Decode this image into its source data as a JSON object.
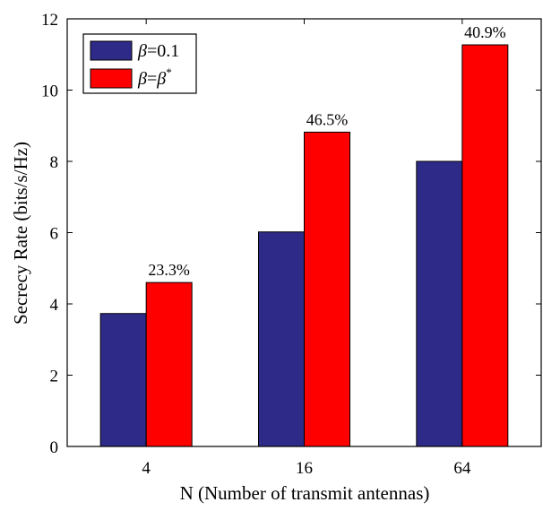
{
  "chart_data": {
    "type": "bar",
    "title": "",
    "xlabel": "N (Number of transmit antennas)",
    "ylabel": "Secrecy Rate (bits/s/Hz)",
    "categories": [
      "4",
      "16",
      "64"
    ],
    "ylim": [
      0,
      12
    ],
    "yticks": [
      0,
      2,
      4,
      6,
      8,
      10,
      12
    ],
    "grid": false,
    "legend_position": "top-left",
    "series": [
      {
        "name": "β=0.1",
        "values": [
          3.73,
          6.02,
          8.0
        ],
        "color": "#2e2a87"
      },
      {
        "name": "β=β*",
        "values": [
          4.6,
          8.82,
          11.27
        ],
        "color": "#ff0000"
      }
    ],
    "data_labels": [
      "23.3%",
      "46.5%",
      "40.9%"
    ]
  },
  "legend": {
    "series1": {
      "var": "β",
      "rest": "=0.1"
    },
    "series2": {
      "var1": "β",
      "eq": "=",
      "var2": "β",
      "sup": "*"
    }
  }
}
